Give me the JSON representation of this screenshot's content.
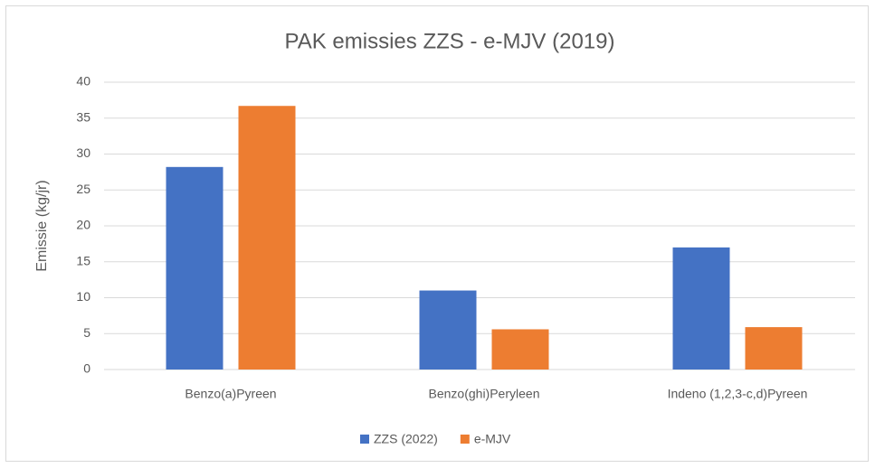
{
  "chart_data": {
    "type": "bar",
    "title": "PAK emissies ZZS - e-MJV (2019)",
    "y_label": "Emissie (kg/jr)",
    "categories": [
      "Benzo(a)Pyreen",
      "Benzo(ghi)Peryleen",
      "Indeno (1,2,3-c,d)Pyreen"
    ],
    "series": [
      {
        "name": "ZZS (2022)",
        "color": "#4472c4",
        "values": [
          28.2,
          11.0,
          17.0
        ]
      },
      {
        "name": "e-MJV",
        "color": "#ed7d31",
        "values": [
          36.7,
          5.6,
          5.9
        ]
      }
    ],
    "ylim": [
      0,
      40
    ],
    "yticks": [
      0,
      5,
      10,
      15,
      20,
      25,
      30,
      35,
      40
    ],
    "grid": true,
    "legend": "bottom"
  }
}
